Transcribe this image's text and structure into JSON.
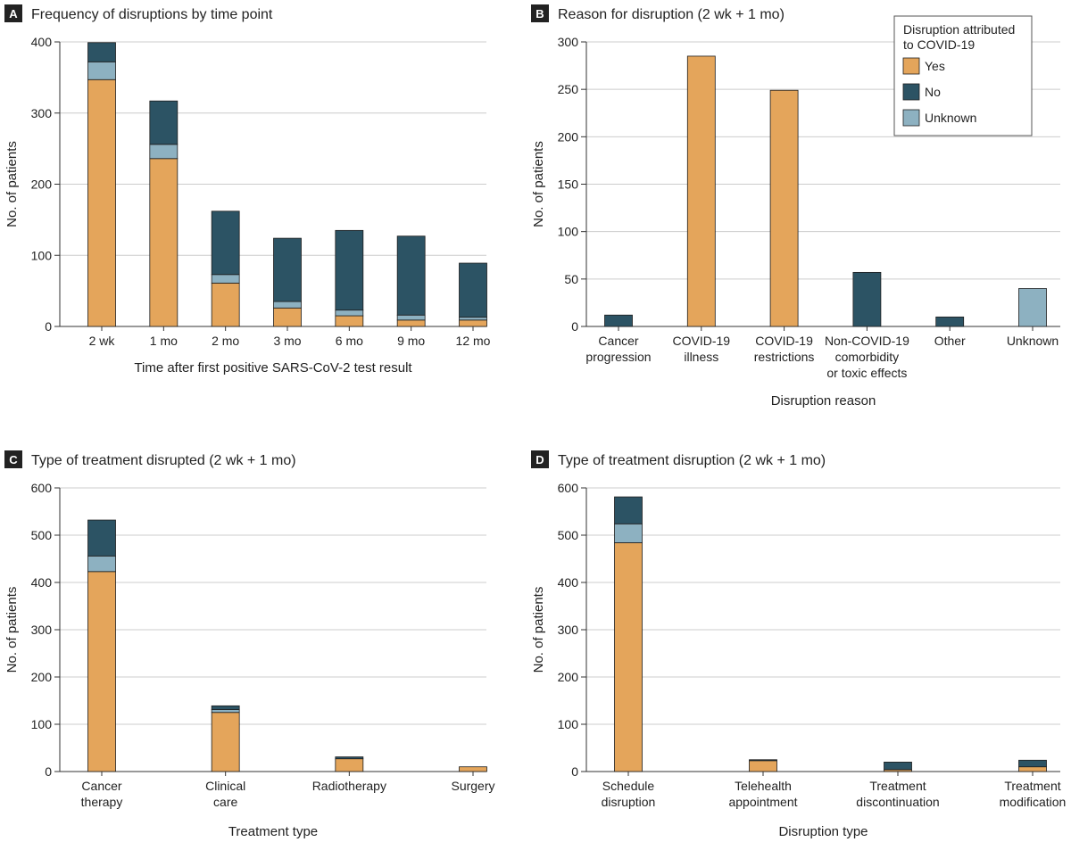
{
  "colors": {
    "yes": "#E4A55B",
    "no": "#2C5364",
    "unknown": "#8DB1C1",
    "grid": "#cccccc",
    "axis": "#333333",
    "letter_bg": "#222222"
  },
  "legend": {
    "title_lines": [
      "Disruption attributed",
      "to COVID-19"
    ],
    "items": [
      {
        "label": "Yes",
        "key": "yes"
      },
      {
        "label": "No",
        "key": "no"
      },
      {
        "label": "Unknown",
        "key": "unknown"
      }
    ]
  },
  "chart_data": [
    {
      "letter": "A",
      "title": "Frequency of disruptions by time point",
      "type": "bar",
      "stacked": true,
      "categories": [
        [
          "2 wk"
        ],
        [
          "1 mo"
        ],
        [
          "2 mo"
        ],
        [
          "3 mo"
        ],
        [
          "6 mo"
        ],
        [
          "9 mo"
        ],
        [
          "12 mo"
        ]
      ],
      "series": [
        {
          "name": "Yes",
          "key": "yes",
          "values": [
            347,
            236,
            61,
            26,
            15,
            9,
            9
          ]
        },
        {
          "name": "Unknown",
          "key": "unknown",
          "values": [
            25,
            20,
            12,
            9,
            8,
            7,
            4
          ]
        },
        {
          "name": "No",
          "key": "no",
          "values": [
            27,
            61,
            89,
            89,
            112,
            111,
            76
          ]
        }
      ],
      "xlabel": "Time after first positive SARS-CoV-2 test result",
      "ylabel": "No. of patients",
      "ylim": [
        0,
        400
      ],
      "yticks": [
        0,
        100,
        200,
        300,
        400
      ],
      "grid": true
    },
    {
      "letter": "B",
      "title": "Reason for disruption (2 wk + 1 mo)",
      "type": "bar",
      "stacked": true,
      "categories": [
        [
          "Cancer",
          "progression"
        ],
        [
          "COVID-19",
          "illness"
        ],
        [
          "COVID-19",
          "restrictions"
        ],
        [
          "Non-COVID-19",
          "comorbidity",
          "or toxic effects"
        ],
        [
          "Other"
        ],
        [
          "Unknown"
        ]
      ],
      "series": [
        {
          "name": "Yes",
          "key": "yes",
          "values": [
            0,
            285,
            249,
            0,
            0,
            0
          ]
        },
        {
          "name": "Unknown",
          "key": "unknown",
          "values": [
            0,
            0,
            0,
            0,
            0,
            40
          ]
        },
        {
          "name": "No",
          "key": "no",
          "values": [
            12,
            0,
            0,
            57,
            10,
            0
          ]
        }
      ],
      "xlabel": "Disruption reason",
      "ylabel": "No. of patients",
      "ylim": [
        0,
        300
      ],
      "yticks": [
        0,
        50,
        100,
        150,
        200,
        250,
        300
      ],
      "grid": true,
      "legend": "top-right"
    },
    {
      "letter": "C",
      "title": "Type of treatment disrupted (2 wk + 1 mo)",
      "type": "bar",
      "stacked": true,
      "categories": [
        [
          "Cancer",
          "therapy"
        ],
        [
          "Clinical",
          "care"
        ],
        [
          "Radiotherapy"
        ],
        [
          "Surgery"
        ]
      ],
      "series": [
        {
          "name": "Yes",
          "key": "yes",
          "values": [
            423,
            125,
            27,
            10
          ]
        },
        {
          "name": "Unknown",
          "key": "unknown",
          "values": [
            33,
            6,
            0,
            0
          ]
        },
        {
          "name": "No",
          "key": "no",
          "values": [
            76,
            8,
            4,
            0
          ]
        }
      ],
      "xlabel": "Treatment type",
      "ylabel": "No. of patients",
      "ylim": [
        0,
        600
      ],
      "yticks": [
        0,
        100,
        200,
        300,
        400,
        500,
        600
      ],
      "grid": true
    },
    {
      "letter": "D",
      "title": "Type of treatment disruption (2 wk + 1 mo)",
      "type": "bar",
      "stacked": true,
      "categories": [
        [
          "Schedule",
          "disruption"
        ],
        [
          "Telehealth",
          "appointment"
        ],
        [
          "Treatment",
          "discontinuation"
        ],
        [
          "Treatment",
          "modification"
        ]
      ],
      "series": [
        {
          "name": "Yes",
          "key": "yes",
          "values": [
            484,
            23,
            4,
            10
          ]
        },
        {
          "name": "Unknown",
          "key": "unknown",
          "values": [
            40,
            0,
            0,
            0
          ]
        },
        {
          "name": "No",
          "key": "no",
          "values": [
            57,
            2,
            16,
            14
          ]
        }
      ],
      "xlabel": "Disruption type",
      "ylabel": "No. of patients",
      "ylim": [
        0,
        600
      ],
      "yticks": [
        0,
        100,
        200,
        300,
        400,
        500,
        600
      ],
      "grid": true
    }
  ]
}
